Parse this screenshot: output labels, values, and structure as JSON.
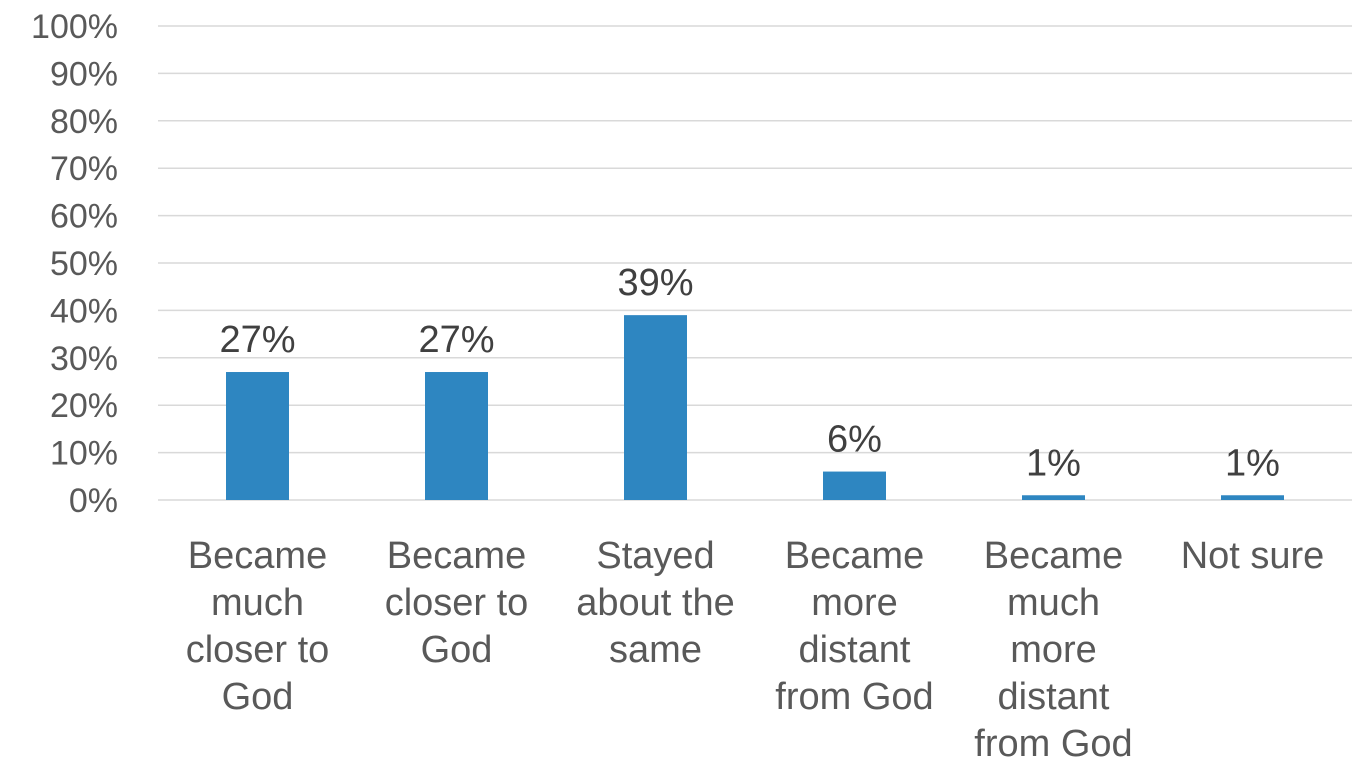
{
  "chart_data": {
    "type": "bar",
    "categories": [
      [
        "Became",
        "much",
        "closer to",
        "God"
      ],
      [
        "Became",
        "closer to",
        "God"
      ],
      [
        "Stayed",
        "about the",
        "same"
      ],
      [
        "Became",
        "more",
        "distant",
        "from God"
      ],
      [
        "Became",
        "much",
        "more",
        "distant",
        "from God"
      ],
      [
        "Not sure"
      ]
    ],
    "values": [
      27,
      27,
      39,
      6,
      1,
      1
    ],
    "data_labels": [
      "27%",
      "27%",
      "39%",
      "6%",
      "1%",
      "1%"
    ],
    "y_ticks": [
      "0%",
      "10%",
      "20%",
      "30%",
      "40%",
      "50%",
      "60%",
      "70%",
      "80%",
      "90%",
      "100%"
    ],
    "ylim": [
      0,
      100
    ],
    "grid": true,
    "bar_color": "#2E86C1",
    "title": "",
    "xlabel": "",
    "ylabel": ""
  }
}
